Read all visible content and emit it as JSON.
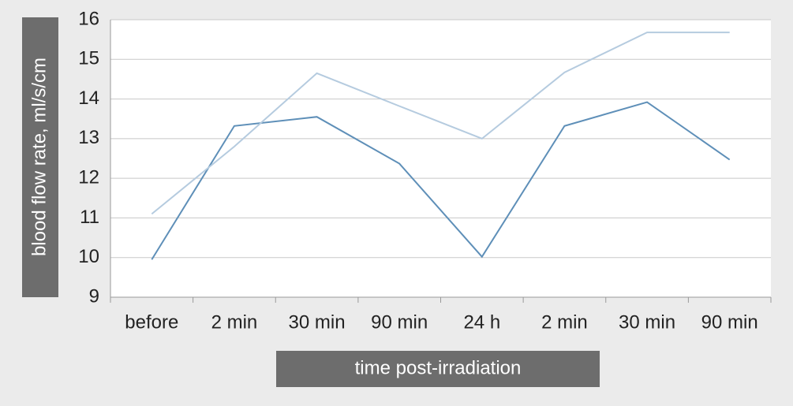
{
  "chart_data": {
    "type": "line",
    "y_label": "blood flow rate, ml/s/cm",
    "x_label": "time post-irradiation",
    "categories": [
      "before",
      "2 min",
      "30 min",
      "90 min",
      "24 h",
      "2 min",
      "30 min",
      "90 min"
    ],
    "series": [
      {
        "color": "#5e8fb8",
        "values": [
          9.95,
          13.32,
          13.55,
          12.37,
          10.02,
          13.32,
          13.92,
          12.47
        ]
      },
      {
        "color": "#b5cbdf",
        "values": [
          11.1,
          12.8,
          14.65,
          13.82,
          13.0,
          14.67,
          15.68,
          15.68
        ]
      }
    ],
    "ylim": [
      9,
      16
    ],
    "yticks": [
      9,
      10,
      11,
      12,
      13,
      14,
      15,
      16
    ],
    "grid": true
  }
}
